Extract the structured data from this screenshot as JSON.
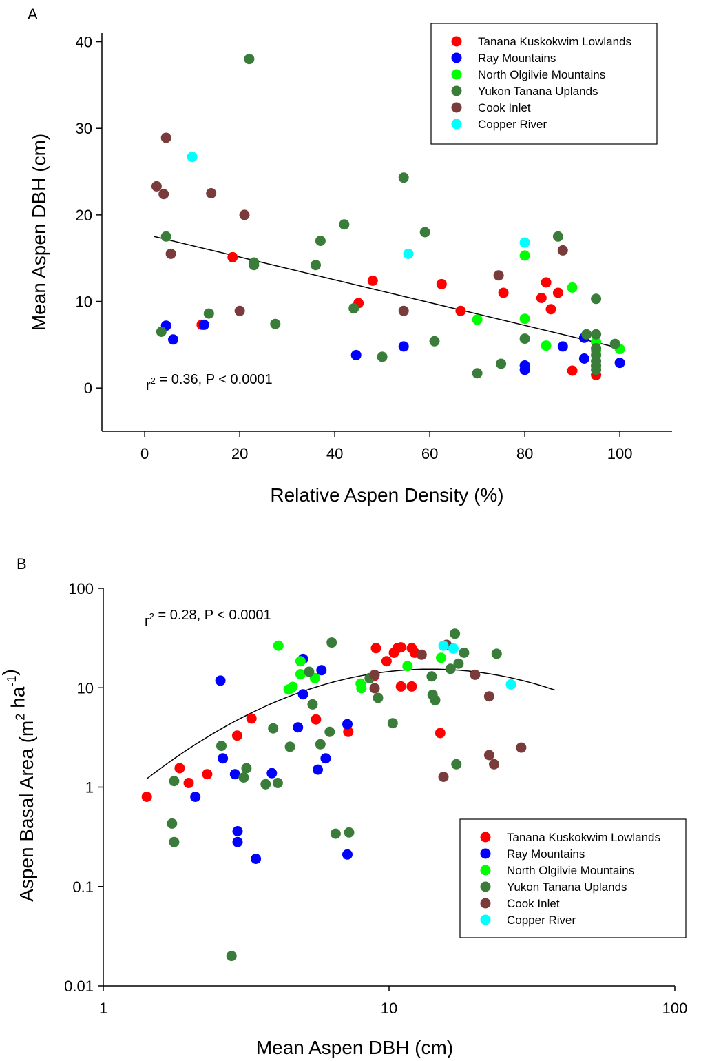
{
  "colors": {
    "Tanana Kuskokwim Lowlands": "#ff0000",
    "Ray Mountains": "#0000ff",
    "North Olgilvie Mountains": "#00ff00",
    "Yukon Tanana Uplands": "#3a7d3a",
    "Cook Inlet": "#7a3b3b",
    "Copper River": "#00ffff"
  },
  "chart_data": [
    {
      "type": "scatter",
      "panel_label": "A",
      "title": "",
      "xlabel": "Relative Aspen Density (%)",
      "ylabel": "Mean Aspen DBH (cm)",
      "xlim": [
        -9,
        111
      ],
      "ylim": [
        -5,
        41
      ],
      "x_ticks": [
        0,
        20,
        40,
        60,
        80,
        100
      ],
      "y_ticks": [
        0,
        10,
        20,
        30,
        40
      ],
      "x_tick_labels": [
        "0",
        "20",
        "40",
        "60",
        "80",
        "100"
      ],
      "y_tick_labels": [
        "0",
        "10",
        "20",
        "30",
        "40"
      ],
      "x_scale": "linear",
      "y_scale": "linear",
      "grid": false,
      "legend_position": "top-right",
      "annotation": {
        "prefix": "r",
        "sup": "2",
        "suffix": " = 0.36, P < 0.0001"
      },
      "fit": {
        "type": "linear",
        "x": [
          2,
          100
        ],
        "y": [
          17.5,
          4.6
        ]
      },
      "series": [
        {
          "name": "Tanana Kuskokwim Lowlands",
          "points": [
            [
              12,
              7.3
            ],
            [
              18.5,
              15.1
            ],
            [
              45,
              9.8
            ],
            [
              48,
              12.4
            ],
            [
              62.5,
              12
            ],
            [
              66.5,
              8.9
            ],
            [
              75.5,
              11
            ],
            [
              83.5,
              10.4
            ],
            [
              84.5,
              12.2
            ],
            [
              85.5,
              9.1
            ],
            [
              87,
              11
            ],
            [
              90,
              2
            ],
            [
              95,
              1.5
            ]
          ]
        },
        {
          "name": "Ray Mountains",
          "points": [
            [
              4.5,
              7.2
            ],
            [
              6,
              5.6
            ],
            [
              12.5,
              7.3
            ],
            [
              44.5,
              3.8
            ],
            [
              54.5,
              4.8
            ],
            [
              80,
              2.6
            ],
            [
              80,
              2.1
            ],
            [
              88,
              4.8
            ],
            [
              92.5,
              3.4
            ],
            [
              92.5,
              5.8
            ],
            [
              100,
              2.9
            ]
          ]
        },
        {
          "name": "North Olgilvie Mountains",
          "points": [
            [
              70,
              7.9
            ],
            [
              80,
              15.3
            ],
            [
              80,
              8
            ],
            [
              84.5,
              4.9
            ],
            [
              90,
              11.6
            ],
            [
              95,
              5.3
            ],
            [
              95,
              4.3
            ],
            [
              95,
              2.5
            ],
            [
              100,
              4.5
            ]
          ]
        },
        {
          "name": "Yukon Tanana Uplands",
          "points": [
            [
              3.5,
              6.5
            ],
            [
              4.5,
              17.5
            ],
            [
              13.5,
              8.6
            ],
            [
              22,
              38
            ],
            [
              23,
              14.5
            ],
            [
              23,
              14.2
            ],
            [
              27.5,
              7.4
            ],
            [
              36,
              14.2
            ],
            [
              37,
              17
            ],
            [
              42,
              18.9
            ],
            [
              44,
              9.2
            ],
            [
              50,
              3.6
            ],
            [
              54.5,
              24.3
            ],
            [
              59,
              18
            ],
            [
              61,
              5.4
            ],
            [
              70,
              1.7
            ],
            [
              75,
              2.8
            ],
            [
              80,
              5.7
            ],
            [
              87,
              17.5
            ],
            [
              93,
              6.2
            ],
            [
              95,
              10.3
            ],
            [
              95,
              6.2
            ],
            [
              95,
              4.6
            ],
            [
              95,
              3.8
            ],
            [
              95,
              3.1
            ],
            [
              95,
              2.6
            ],
            [
              95,
              2.1
            ],
            [
              99,
              5.1
            ]
          ]
        },
        {
          "name": "Cook Inlet",
          "points": [
            [
              2.5,
              23.3
            ],
            [
              4,
              22.4
            ],
            [
              4.5,
              28.9
            ],
            [
              5.5,
              15.5
            ],
            [
              14,
              22.5
            ],
            [
              20,
              8.9
            ],
            [
              21,
              20
            ],
            [
              54.5,
              8.9
            ],
            [
              74.5,
              13
            ],
            [
              88,
              15.9
            ]
          ]
        },
        {
          "name": "Copper River",
          "points": [
            [
              10,
              26.7
            ],
            [
              55.5,
              15.5
            ],
            [
              80,
              16.8
            ]
          ]
        }
      ]
    },
    {
      "type": "scatter",
      "panel_label": "B",
      "title": "",
      "xlabel": "Mean Aspen DBH (cm)",
      "ylabel": {
        "prefix": "Aspen Basal Area (m",
        "sup1": "2",
        "mid": " ha",
        "sup2": "-1",
        "suffix": ")"
      },
      "xlim": [
        1,
        100
      ],
      "ylim": [
        0.01,
        100
      ],
      "x_ticks": [
        1,
        10,
        100
      ],
      "y_ticks": [
        0.01,
        0.1,
        1,
        10,
        100
      ],
      "x_tick_labels": [
        "1",
        "10",
        "100"
      ],
      "y_tick_labels": [
        "0.01",
        "0.1",
        "1",
        "10",
        "100"
      ],
      "x_scale": "log",
      "y_scale": "log",
      "grid": false,
      "legend_position": "bottom-right",
      "annotation": {
        "prefix": "r",
        "sup": "2",
        "suffix": " = 0.28, P < 0.0001"
      },
      "fit": {
        "type": "quadratic-log",
        "x_range": [
          1.42,
          38
        ],
        "peak_x": 14,
        "peak_y": 15.4,
        "curvature": 1.117
      },
      "series": [
        {
          "name": "Tanana Kuskokwim Lowlands",
          "points": [
            [
              1.42,
              0.8
            ],
            [
              1.85,
              1.55
            ],
            [
              1.99,
              1.1
            ],
            [
              2.31,
              1.35
            ],
            [
              2.94,
              3.3
            ],
            [
              3.3,
              4.9
            ],
            [
              5.55,
              4.8
            ],
            [
              7.2,
              3.6
            ],
            [
              8.85,
              13
            ],
            [
              9.0,
              25
            ],
            [
              9.8,
              18.5
            ],
            [
              10.4,
              22.5
            ],
            [
              10.7,
              25
            ],
            [
              11.0,
              25.5
            ],
            [
              11.0,
              10.3
            ],
            [
              12.0,
              10.3
            ],
            [
              12.0,
              25
            ],
            [
              12.3,
              22.5
            ],
            [
              15.1,
              3.5
            ]
          ]
        },
        {
          "name": "Ray Mountains",
          "points": [
            [
              2.1,
              0.8
            ],
            [
              2.57,
              11.8
            ],
            [
              2.62,
              1.95
            ],
            [
              2.89,
              1.35
            ],
            [
              2.95,
              0.36
            ],
            [
              2.95,
              0.28
            ],
            [
              3.42,
              0.19
            ],
            [
              3.89,
              1.38
            ],
            [
              4.8,
              4
            ],
            [
              5.0,
              19.5
            ],
            [
              5.0,
              8.6
            ],
            [
              5.63,
              1.5
            ],
            [
              5.8,
              15
            ],
            [
              6.0,
              1.95
            ],
            [
              7.15,
              4.3
            ],
            [
              7.15,
              0.21
            ]
          ]
        },
        {
          "name": "North Olgilvie Mountains",
          "points": [
            [
              4.1,
              26.5
            ],
            [
              4.45,
              9.6
            ],
            [
              4.6,
              10.2
            ],
            [
              4.9,
              13.7
            ],
            [
              4.9,
              18.5
            ],
            [
              5.5,
              12.5
            ],
            [
              7.95,
              11
            ],
            [
              8.0,
              9.9
            ],
            [
              11.6,
              16.5
            ],
            [
              15.2,
              20
            ]
          ]
        },
        {
          "name": "Yukon Tanana Uplands",
          "points": [
            [
              1.74,
              0.43
            ],
            [
              1.77,
              1.15
            ],
            [
              1.77,
              0.28
            ],
            [
              2.59,
              2.6
            ],
            [
              2.81,
              0.02
            ],
            [
              3.1,
              1.25
            ],
            [
              3.17,
              1.55
            ],
            [
              3.7,
              1.07
            ],
            [
              3.93,
              3.9
            ],
            [
              4.08,
              1.1
            ],
            [
              4.5,
              2.55
            ],
            [
              5.25,
              14.5
            ],
            [
              5.4,
              6.8
            ],
            [
              5.75,
              2.7
            ],
            [
              6.2,
              3.6
            ],
            [
              6.3,
              28.5
            ],
            [
              6.5,
              0.34
            ],
            [
              7.25,
              0.35
            ],
            [
              8.55,
              12.5
            ],
            [
              9.15,
              7.9
            ],
            [
              10.3,
              4.4
            ],
            [
              14.1,
              13
            ],
            [
              14.2,
              8.5
            ],
            [
              14.5,
              7.5
            ],
            [
              16.4,
              15.5
            ],
            [
              17.0,
              35
            ],
            [
              17.5,
              17.5
            ],
            [
              18.3,
              22.5
            ],
            [
              17.2,
              1.7
            ],
            [
              23.8,
              22
            ]
          ]
        },
        {
          "name": "Cook Inlet",
          "points": [
            [
              8.9,
              13.5
            ],
            [
              8.9,
              9.9
            ],
            [
              13.0,
              21.5
            ],
            [
              15.5,
              1.27
            ],
            [
              15.9,
              27
            ],
            [
              20.0,
              13.5
            ],
            [
              22.4,
              8.2
            ],
            [
              22.4,
              2.1
            ],
            [
              23.3,
              1.7
            ],
            [
              29.0,
              2.5
            ]
          ]
        },
        {
          "name": "Copper River",
          "points": [
            [
              15.5,
              26.5
            ],
            [
              16.8,
              24.8
            ],
            [
              26.7,
              10.8
            ]
          ]
        }
      ]
    }
  ]
}
